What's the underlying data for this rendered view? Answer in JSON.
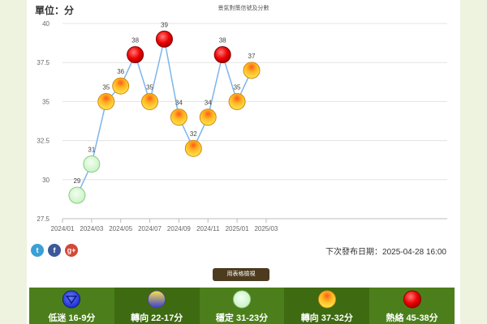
{
  "header": {
    "unit_label": "單位：分",
    "chart_title": "景氣對策信號及分數"
  },
  "chart_data": {
    "type": "line",
    "x": [
      "2024-02",
      "2024-03",
      "2024-04",
      "2024-05",
      "2024-06",
      "2024-07",
      "2024-08",
      "2024-09",
      "2024-10",
      "2024-11",
      "2024-12",
      "2025-01",
      "2025-02"
    ],
    "values": [
      29,
      31,
      35,
      36,
      38,
      35,
      39,
      34,
      32,
      34,
      38,
      35,
      37
    ],
    "signals": [
      "green",
      "green",
      "yellow-red",
      "yellow-red",
      "red",
      "yellow-red",
      "red",
      "yellow-red",
      "yellow-red",
      "yellow-red",
      "red",
      "yellow-red",
      "yellow-red"
    ],
    "x_ticks": [
      "2024/01",
      "2024/03",
      "2024/05",
      "2024/07",
      "2024/09",
      "2024/11",
      "2025/01",
      "2025/03"
    ],
    "y_ticks": [
      "27.5",
      "30",
      "32.5",
      "35",
      "37.5",
      "40"
    ],
    "ylim": [
      27.5,
      40
    ],
    "grid": true,
    "line_color": "#7cb5ec"
  },
  "footer": {
    "next_release": "下次發布日期：2025-04-28 16:00",
    "table_button": "用表格檢視",
    "social": [
      {
        "name": "twitter",
        "glyph": "t",
        "color": "#3aa0d8"
      },
      {
        "name": "facebook",
        "glyph": "f",
        "color": "#3b5998"
      },
      {
        "name": "google-plus",
        "glyph": "g+",
        "color": "#d34836"
      }
    ]
  },
  "legend": [
    {
      "key": "blue",
      "label": "低迷 16-9分"
    },
    {
      "key": "yellow-blue",
      "label": "轉向 22-17分"
    },
    {
      "key": "green",
      "label": "穩定 31-23分"
    },
    {
      "key": "yellow-red",
      "label": "轉向 37-32分"
    },
    {
      "key": "red",
      "label": "熱絡 45-38分"
    }
  ]
}
